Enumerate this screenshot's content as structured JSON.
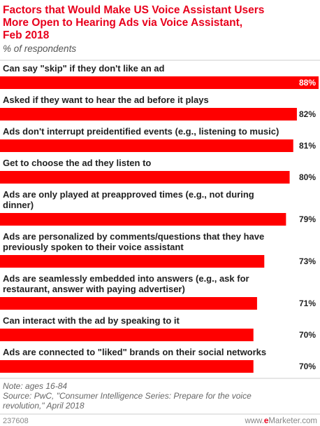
{
  "chart_data": {
    "type": "bar",
    "orientation": "horizontal",
    "title": "Factors that Would Make US Voice Assistant Users More Open to Hearing Ads via Voice Assistant, Feb 2018",
    "title_lines": [
      "Factors that Would Make US Voice Assistant Users",
      "More Open to Hearing Ads via Voice Assistant,",
      "Feb 2018"
    ],
    "subtitle": "% of respondents",
    "categories": [
      "Can say \"skip\" if they don't like an ad",
      "Asked if they want to hear the ad before it plays",
      "Ads don't interrupt preidentified events (e.g., listening to music)",
      "Get to choose the ad they listen to",
      "Ads are only played at preapproved times (e.g., not during dinner)",
      "Ads are personalized by comments/questions that they have previously spoken to their voice assistant",
      "Ads are seamlessly embedded into answers (e.g., ask for restaurant, answer with paying advertiser)",
      "Can interact with the ad by speaking to it",
      "Ads are connected to \"liked\" brands on their social networks"
    ],
    "category_lines": [
      [
        "Can say \"skip\" if they don't like an ad"
      ],
      [
        "Asked if they want to hear the ad before it plays"
      ],
      [
        "Ads don't interrupt preidentified events (e.g., listening to music)"
      ],
      [
        "Get to choose the ad they listen to"
      ],
      [
        "Ads are only played at preapproved times (e.g., not during",
        "dinner)"
      ],
      [
        "Ads are personalized by comments/questions that they have",
        "previously spoken to their voice assistant"
      ],
      [
        "Ads are seamlessly embedded into answers (e.g., ask for",
        "restaurant, answer with paying advertiser)"
      ],
      [
        "Can interact with the ad by speaking to it"
      ],
      [
        "Ads are connected to \"liked\" brands on their social networks"
      ]
    ],
    "values": [
      88,
      82,
      81,
      80,
      79,
      73,
      71,
      70,
      70
    ],
    "value_labels": [
      "88%",
      "82%",
      "81%",
      "80%",
      "79%",
      "73%",
      "71%",
      "70%",
      "70%"
    ],
    "xlim": [
      0,
      88
    ],
    "grid": false,
    "bar_color": "#ff0000"
  },
  "notes": [
    "Note: ages 16-84",
    "Source: PwC, \"Consumer Intelligence Series: Prepare for the voice",
    "revolution,\" April 2018"
  ],
  "footer": {
    "chart_id": "237608",
    "brand_prefix": "www.",
    "brand_e": "e",
    "brand_suffix": "Marketer.com"
  },
  "colors": {
    "accent": "#e8001c",
    "bar": "#ff0000",
    "divider": "#cccccc"
  }
}
